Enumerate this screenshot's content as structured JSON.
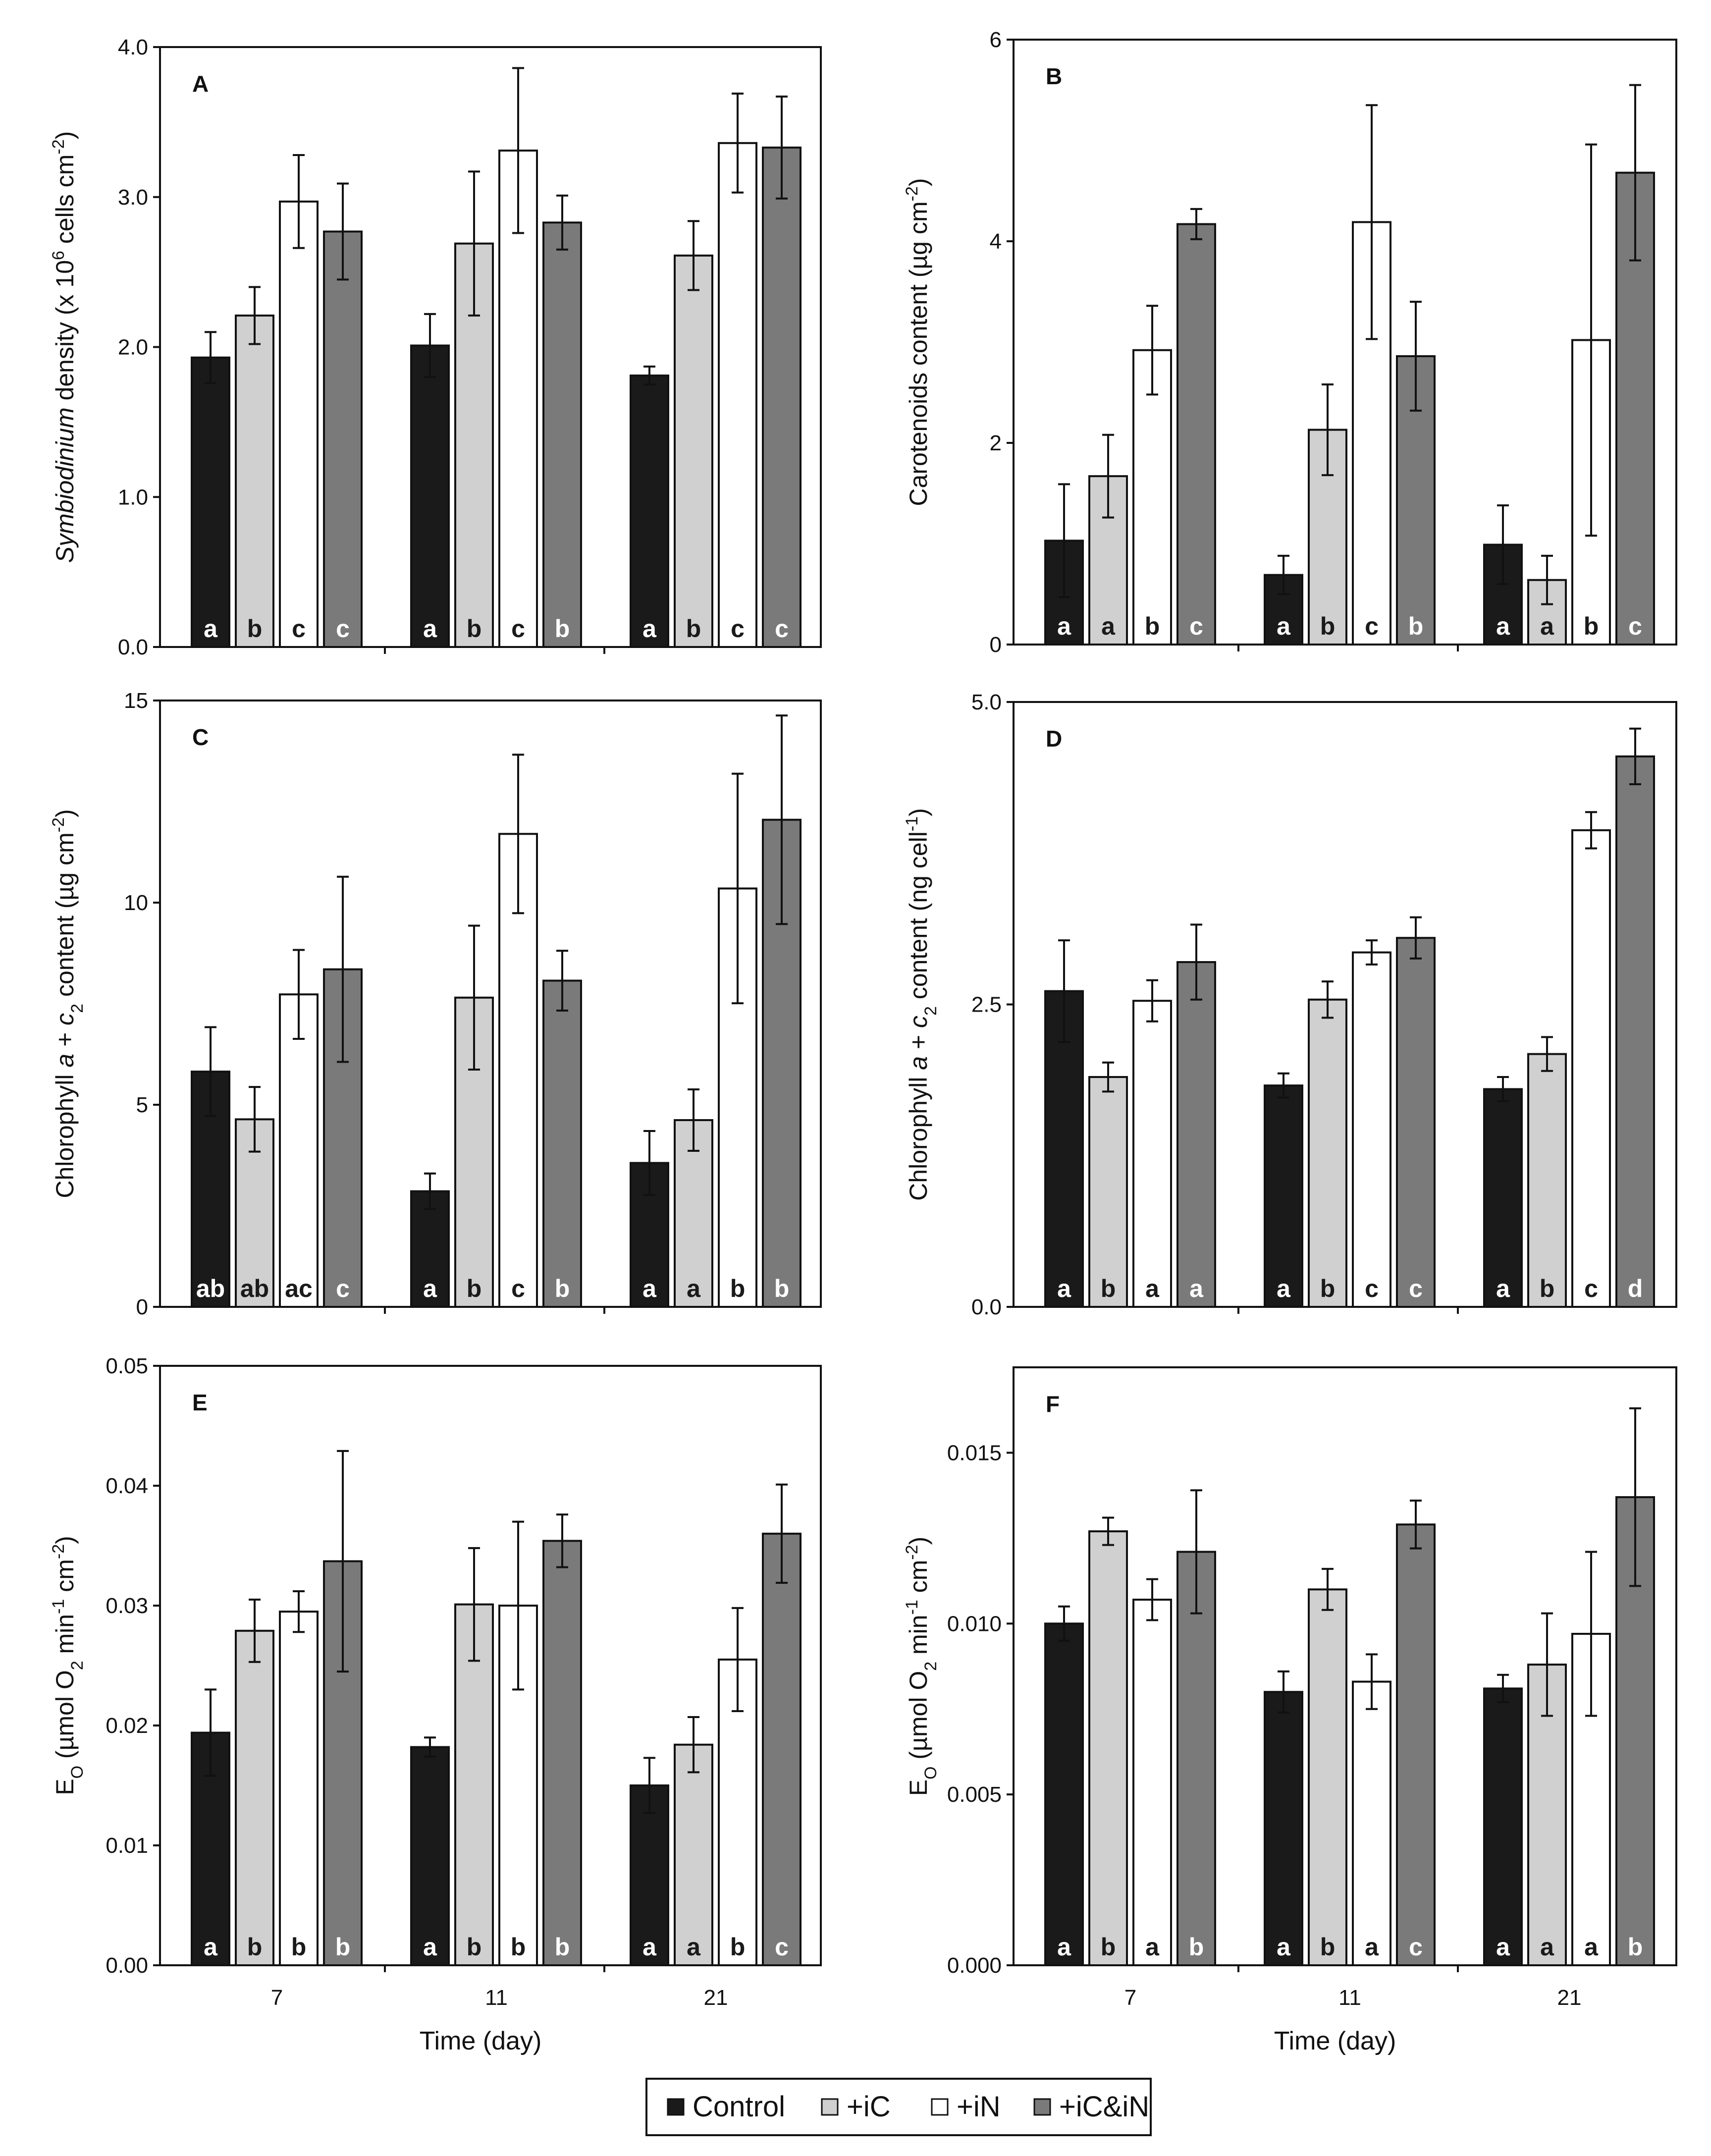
{
  "legend": {
    "items": [
      {
        "label": "Control",
        "color": "#1a1a1a"
      },
      {
        "label": "+iC",
        "color": "#d0d0d0"
      },
      {
        "label": "+iN",
        "color": "#ffffff"
      },
      {
        "label": "+iC&iN",
        "color": "#7a7a7a"
      }
    ]
  },
  "chart_data": [
    {
      "type": "bar",
      "panel": "A",
      "title": "",
      "xlabel": "",
      "ylabel": "Symbiodinium density (x 10^6 cells cm^-2)",
      "ylabel_parts": {
        "italic": "Symbiodinium",
        "a": " density (x 10",
        "sup1": "6",
        "b": " cells cm",
        "sup2": "-2",
        "c": ")"
      },
      "ylim": [
        0,
        4
      ],
      "yticks": [
        "0.0",
        "1.0",
        "2.0",
        "3.0",
        "4.0"
      ],
      "ytick_values": [
        0,
        1,
        2,
        3,
        4
      ],
      "categories": [
        "7",
        "11",
        "21"
      ],
      "series": [
        {
          "name": "Control",
          "values": [
            1.93,
            2.01,
            1.81
          ],
          "errors": [
            0.17,
            0.21,
            0.06
          ],
          "letters": [
            "a",
            "a",
            "a"
          ]
        },
        {
          "name": "+iC",
          "values": [
            2.21,
            2.69,
            2.61
          ],
          "errors": [
            0.19,
            0.48,
            0.23
          ],
          "letters": [
            "b",
            "b",
            "b"
          ]
        },
        {
          "name": "+iN",
          "values": [
            2.97,
            3.31,
            3.36
          ],
          "errors": [
            0.31,
            0.55,
            0.33
          ],
          "letters": [
            "c",
            "c",
            "c"
          ]
        },
        {
          "name": "+iC&iN",
          "values": [
            2.77,
            2.83,
            3.33
          ],
          "errors": [
            0.32,
            0.18,
            0.34
          ],
          "letters": [
            "c",
            "b",
            "c"
          ]
        }
      ]
    },
    {
      "type": "bar",
      "panel": "B",
      "title": "",
      "xlabel": "",
      "ylabel": "Carotenoids content (µg cm^-2)",
      "ylabel_parts": {
        "a": "Carotenoids content (µg cm",
        "sup1": "-2",
        "b": ")"
      },
      "ylim": [
        0,
        6
      ],
      "yticks": [
        "0",
        "2",
        "4",
        "6"
      ],
      "ytick_values": [
        0,
        2,
        4,
        6
      ],
      "categories": [
        "7",
        "11",
        "21"
      ],
      "series": [
        {
          "name": "Control",
          "values": [
            1.03,
            0.69,
            0.99
          ],
          "errors": [
            0.56,
            0.19,
            0.39
          ],
          "letters": [
            "a",
            "a",
            "a"
          ]
        },
        {
          "name": "+iC",
          "values": [
            1.67,
            2.13,
            0.64
          ],
          "errors": [
            0.41,
            0.45,
            0.24
          ],
          "letters": [
            "a",
            "b",
            "a"
          ]
        },
        {
          "name": "+iN",
          "values": [
            2.92,
            4.19,
            3.02
          ],
          "errors": [
            0.44,
            1.16,
            1.94
          ],
          "letters": [
            "b",
            "c",
            "b"
          ]
        },
        {
          "name": "+iC&iN",
          "values": [
            4.17,
            2.86,
            4.68
          ],
          "errors": [
            0.15,
            0.54,
            0.87
          ],
          "letters": [
            "c",
            "b",
            "c"
          ]
        }
      ]
    },
    {
      "type": "bar",
      "panel": "C",
      "title": "",
      "xlabel": "",
      "ylabel": "Chlorophyll a + c2 content (µg cm^-2)",
      "ylabel_parts": {
        "a": "Chlorophyll ",
        "i1": "a",
        "b": " + ",
        "i2": "c",
        "sub": "2",
        "c": " content  (µg cm",
        "sup1": "-2",
        "d": ")"
      },
      "ylim": [
        0,
        15
      ],
      "yticks": [
        "0",
        "5",
        "10",
        "15"
      ],
      "ytick_values": [
        0,
        5,
        10,
        15
      ],
      "categories": [
        "7",
        "11",
        "21"
      ],
      "series": [
        {
          "name": "Control",
          "values": [
            5.82,
            2.86,
            3.56
          ],
          "errors": [
            1.1,
            0.44,
            0.79
          ],
          "letters": [
            "ab",
            "a",
            "a"
          ]
        },
        {
          "name": "+iC",
          "values": [
            4.64,
            7.65,
            4.62
          ],
          "errors": [
            0.8,
            1.78,
            0.76
          ],
          "letters": [
            "ab",
            "b",
            "a"
          ]
        },
        {
          "name": "+iN",
          "values": [
            7.73,
            11.7,
            10.35
          ],
          "errors": [
            1.1,
            1.96,
            2.84
          ],
          "letters": [
            "ac",
            "c",
            "b"
          ]
        },
        {
          "name": "+iC&iN",
          "values": [
            8.35,
            8.07,
            12.05
          ],
          "errors": [
            2.29,
            0.74,
            2.58
          ],
          "letters": [
            "c",
            "b",
            "b"
          ]
        }
      ]
    },
    {
      "type": "bar",
      "panel": "D",
      "title": "",
      "xlabel": "",
      "ylabel": "Chlorophyll a + c2 content (ng cell^-1)",
      "ylabel_parts": {
        "a": "Chlorophyll ",
        "i1": "a",
        "b": " + ",
        "i2": "c",
        "sub": "2",
        "c": " content (ng cell",
        "sup1": "-1",
        "d": ")"
      },
      "ylim": [
        0,
        5
      ],
      "yticks": [
        "0.0",
        "2.5",
        "5.0"
      ],
      "ytick_values": [
        0,
        2.5,
        5
      ],
      "categories": [
        "7",
        "11",
        "21"
      ],
      "series": [
        {
          "name": "Control",
          "values": [
            2.61,
            1.83,
            1.8
          ],
          "errors": [
            0.42,
            0.1,
            0.1
          ],
          "letters": [
            "a",
            "a",
            "a"
          ]
        },
        {
          "name": "+iC",
          "values": [
            1.9,
            2.54,
            2.09
          ],
          "errors": [
            0.12,
            0.15,
            0.14
          ],
          "letters": [
            "b",
            "b",
            "b"
          ]
        },
        {
          "name": "+iN",
          "values": [
            2.53,
            2.93,
            3.94
          ],
          "errors": [
            0.17,
            0.1,
            0.15
          ],
          "letters": [
            "a",
            "c",
            "c"
          ]
        },
        {
          "name": "+iC&iN",
          "values": [
            2.85,
            3.05,
            4.55
          ],
          "errors": [
            0.31,
            0.17,
            0.23
          ],
          "letters": [
            "a",
            "c",
            "d"
          ]
        }
      ]
    },
    {
      "type": "bar",
      "panel": "E",
      "title": "",
      "xlabel": "Time (day)",
      "ylabel": "EO (µmol O2 min^-1 cm^-2)",
      "ylabel_parts": {
        "a": "E",
        "sub1": "O",
        "b": " (µmol O",
        "sub2": "2",
        "c": " min",
        "sup1": "-1",
        "d": " cm",
        "sup2": "-2",
        "e": ")"
      },
      "ylim": [
        0,
        0.05
      ],
      "yticks": [
        "0.00",
        "0.01",
        "0.02",
        "0.03",
        "0.04",
        "0.05"
      ],
      "ytick_values": [
        0,
        0.01,
        0.02,
        0.03,
        0.04,
        0.05
      ],
      "categories": [
        "7",
        "11",
        "21"
      ],
      "series": [
        {
          "name": "Control",
          "values": [
            0.0194,
            0.0182,
            0.015
          ],
          "errors": [
            0.0036,
            0.0008,
            0.0023
          ],
          "letters": [
            "a",
            "a",
            "a"
          ]
        },
        {
          "name": "+iC",
          "values": [
            0.0279,
            0.0301,
            0.0184
          ],
          "errors": [
            0.0026,
            0.0047,
            0.0023
          ],
          "letters": [
            "b",
            "b",
            "a"
          ]
        },
        {
          "name": "+iN",
          "values": [
            0.0295,
            0.03,
            0.0255
          ],
          "errors": [
            0.0017,
            0.007,
            0.0043
          ],
          "letters": [
            "b",
            "b",
            "b"
          ]
        },
        {
          "name": "+iC&iN",
          "values": [
            0.0337,
            0.0354,
            0.036
          ],
          "errors": [
            0.0092,
            0.0022,
            0.0041
          ],
          "letters": [
            "b",
            "b",
            "c"
          ]
        }
      ]
    },
    {
      "type": "bar",
      "panel": "F",
      "title": "",
      "xlabel": "Time (day)",
      "ylabel": "EO (µmol O2 min^-1 cm^-2)",
      "ylabel_parts": {
        "a": "E",
        "sub1": "O",
        "b": " (µmol O",
        "sub2": "2",
        "c": " min",
        "sup1": "-1",
        "d": " cm",
        "sup2": "-2",
        "e": ")"
      },
      "ylim": [
        0,
        0.0175
      ],
      "yticks": [
        "0.000",
        "0.005",
        "0.010",
        "0.015"
      ],
      "ytick_values": [
        0,
        0.005,
        0.01,
        0.015
      ],
      "categories": [
        "7",
        "11",
        "21"
      ],
      "series": [
        {
          "name": "Control",
          "values": [
            0.01,
            0.008,
            0.0081
          ],
          "errors": [
            0.0005,
            0.0006,
            0.0004
          ],
          "letters": [
            "a",
            "a",
            "a"
          ]
        },
        {
          "name": "+iC",
          "values": [
            0.0127,
            0.011,
            0.0088
          ],
          "errors": [
            0.0004,
            0.0006,
            0.0015
          ],
          "letters": [
            "b",
            "b",
            "a"
          ]
        },
        {
          "name": "+iN",
          "values": [
            0.0107,
            0.0083,
            0.0097
          ],
          "errors": [
            0.0006,
            0.0008,
            0.0024
          ],
          "letters": [
            "a",
            "a",
            "a"
          ]
        },
        {
          "name": "+iC&iN",
          "values": [
            0.0121,
            0.0129,
            0.0137
          ],
          "errors": [
            0.0018,
            0.0007,
            0.0026
          ],
          "letters": [
            "b",
            "c",
            "b"
          ]
        }
      ]
    }
  ]
}
